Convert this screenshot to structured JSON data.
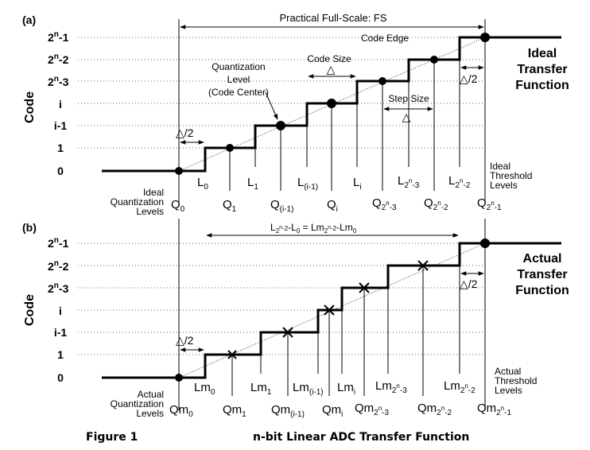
{
  "caption": {
    "figure_label": "Figure 1",
    "title": "n-bit Linear ADC Transfer Function"
  },
  "panel_a": {
    "label": "(a)",
    "y_axis_title": "Code",
    "codes": [
      "0",
      "1",
      "i-1",
      "i",
      "2n-3",
      "2n-2",
      "2n-1"
    ],
    "full_scale": "Practical Full-Scale: FS",
    "code_edge": "Code Edge",
    "quant_level": [
      "Quantization",
      "Level",
      "(Code Center)"
    ],
    "code_size": "Code Size",
    "step_size": "Step Size",
    "half_lsb": "△/2",
    "delta": "△",
    "title": [
      "Ideal",
      "Transfer",
      "Function"
    ],
    "threshold_label": [
      "Ideal",
      "Threshold",
      "Levels"
    ],
    "quant_label": [
      "Ideal",
      "Quantization",
      "Levels"
    ],
    "thresholds": [
      "L0",
      "L1",
      "L(i-1)",
      "Li",
      "L2n-3",
      "L2n-2"
    ],
    "quant_levels": [
      "Q0",
      "Q1",
      "Q(i-1)",
      "Qi",
      "Q2n-3",
      "Q2n-2",
      "Q2n-1"
    ]
  },
  "panel_b": {
    "label": "(b)",
    "y_axis_title": "Code",
    "codes": [
      "0",
      "1",
      "i-1",
      "i",
      "2n-3",
      "2n-2",
      "2n-1"
    ],
    "equation": "L2n-2-L0 = Lm2n-2-Lm0",
    "half_lsb": "△/2",
    "title": [
      "Actual",
      "Transfer",
      "Function"
    ],
    "threshold_label": [
      "Actual",
      "Threshold",
      "Levels"
    ],
    "quant_label": [
      "Actual",
      "Quantization",
      "Levels"
    ],
    "thresholds": [
      "Lm0",
      "Lm1",
      "Lm(i-1)",
      "Lmi",
      "Lm2n-3",
      "Lm2n-2"
    ],
    "quant_levels": [
      "Qm0",
      "Qm1",
      "Qm(i-1)",
      "Qmi",
      "Qm2n-3",
      "Qm2n-2",
      "Qm2n-1"
    ]
  }
}
